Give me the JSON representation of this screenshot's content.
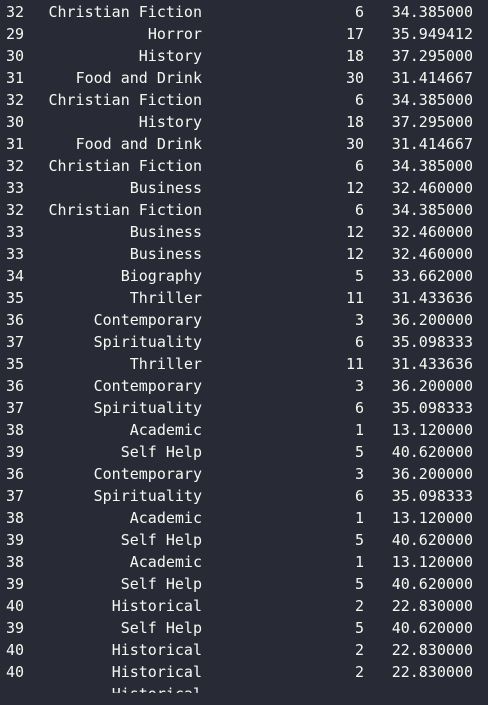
{
  "console": {
    "rows": [
      {
        "idx": "32",
        "genre": "Christian Fiction",
        "count": "6",
        "value": "34.385000"
      },
      {
        "idx": "29",
        "genre": "Horror",
        "count": "17",
        "value": "35.949412"
      },
      {
        "idx": "30",
        "genre": "History",
        "count": "18",
        "value": "37.295000"
      },
      {
        "idx": "31",
        "genre": "Food and Drink",
        "count": "30",
        "value": "31.414667"
      },
      {
        "idx": "32",
        "genre": "Christian Fiction",
        "count": "6",
        "value": "34.385000"
      },
      {
        "idx": "30",
        "genre": "History",
        "count": "18",
        "value": "37.295000"
      },
      {
        "idx": "31",
        "genre": "Food and Drink",
        "count": "30",
        "value": "31.414667"
      },
      {
        "idx": "32",
        "genre": "Christian Fiction",
        "count": "6",
        "value": "34.385000"
      },
      {
        "idx": "33",
        "genre": "Business",
        "count": "12",
        "value": "32.460000"
      },
      {
        "idx": "32",
        "genre": "Christian Fiction",
        "count": "6",
        "value": "34.385000"
      },
      {
        "idx": "33",
        "genre": "Business",
        "count": "12",
        "value": "32.460000"
      },
      {
        "idx": "33",
        "genre": "Business",
        "count": "12",
        "value": "32.460000"
      },
      {
        "idx": "34",
        "genre": "Biography",
        "count": "5",
        "value": "33.662000"
      },
      {
        "idx": "35",
        "genre": "Thriller",
        "count": "11",
        "value": "31.433636"
      },
      {
        "idx": "36",
        "genre": "Contemporary",
        "count": "3",
        "value": "36.200000"
      },
      {
        "idx": "37",
        "genre": "Spirituality",
        "count": "6",
        "value": "35.098333"
      },
      {
        "idx": "35",
        "genre": "Thriller",
        "count": "11",
        "value": "31.433636"
      },
      {
        "idx": "36",
        "genre": "Contemporary",
        "count": "3",
        "value": "36.200000"
      },
      {
        "idx": "37",
        "genre": "Spirituality",
        "count": "6",
        "value": "35.098333"
      },
      {
        "idx": "38",
        "genre": "Academic",
        "count": "1",
        "value": "13.120000"
      },
      {
        "idx": "39",
        "genre": "Self Help",
        "count": "5",
        "value": "40.620000"
      },
      {
        "idx": "36",
        "genre": "Contemporary",
        "count": "3",
        "value": "36.200000"
      },
      {
        "idx": "37",
        "genre": "Spirituality",
        "count": "6",
        "value": "35.098333"
      },
      {
        "idx": "38",
        "genre": "Academic",
        "count": "1",
        "value": "13.120000"
      },
      {
        "idx": "39",
        "genre": "Self Help",
        "count": "5",
        "value": "40.620000"
      },
      {
        "idx": "38",
        "genre": "Academic",
        "count": "1",
        "value": "13.120000"
      },
      {
        "idx": "39",
        "genre": "Self Help",
        "count": "5",
        "value": "40.620000"
      },
      {
        "idx": "40",
        "genre": "Historical",
        "count": "2",
        "value": "22.830000"
      },
      {
        "idx": "39",
        "genre": "Self Help",
        "count": "5",
        "value": "40.620000"
      },
      {
        "idx": "40",
        "genre": "Historical",
        "count": "2",
        "value": "22.830000"
      },
      {
        "idx": "40",
        "genre": "Historical",
        "count": "2",
        "value": "22.830000"
      },
      {
        "idx": "",
        "genre": "Historical",
        "count": "",
        "value": ""
      }
    ]
  },
  "colors": {
    "background": "#282a36",
    "text": "#f8f8f2"
  }
}
